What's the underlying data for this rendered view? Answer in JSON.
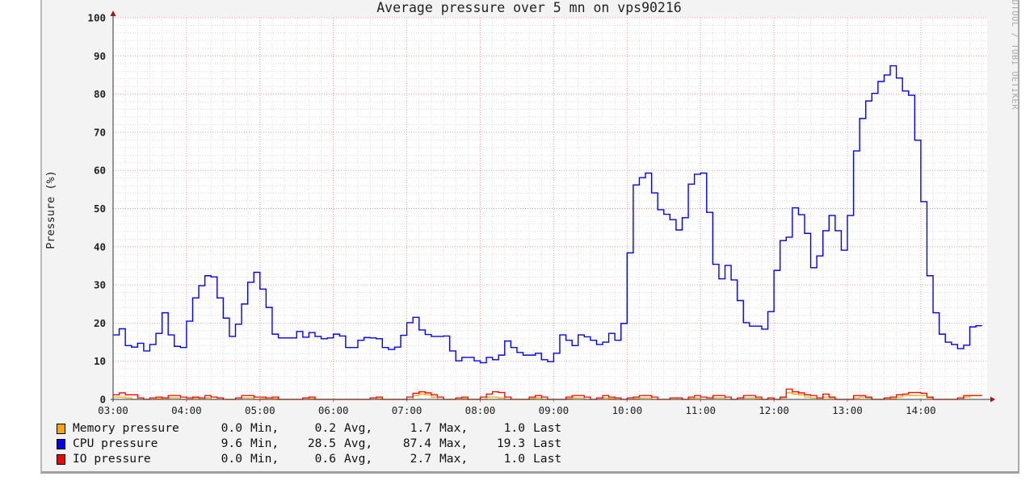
{
  "chart_data": {
    "type": "line",
    "title": "Average pressure over 5 mn on vps90216",
    "ylabel": "Pressure (%)",
    "xlabel": "",
    "watermark": "RRDTOOL / TOBI OETIKER",
    "ylim": [
      0,
      100
    ],
    "y_ticks": [
      0,
      10,
      20,
      30,
      40,
      50,
      60,
      70,
      80,
      90,
      100
    ],
    "x_tick_labels": [
      "03:00",
      "04:00",
      "05:00",
      "06:00",
      "07:00",
      "08:00",
      "09:00",
      "10:00",
      "11:00",
      "12:00",
      "13:00",
      "14:00"
    ],
    "x_start": "03:00",
    "interval_minutes": 5,
    "grid": true,
    "legend_placement": "bottom-left",
    "stat_labels": [
      "Min,",
      "Avg,",
      "Max,",
      "Last"
    ],
    "series": [
      {
        "name": "Memory pressure",
        "color": "#ffa500",
        "stats": {
          "min": "0.0",
          "avg": "0.2",
          "max": "1.7",
          "last": "1.0"
        },
        "values": [
          0.6,
          0.6,
          0.4,
          0,
          0,
          0,
          0,
          0.2,
          0,
          0.4,
          0.4,
          0,
          0,
          0.4,
          0,
          0.4,
          0,
          0,
          0,
          0,
          0,
          0.4,
          0.4,
          0,
          0.2,
          0,
          0.2,
          0,
          0,
          0,
          0,
          0,
          0.2,
          0,
          0,
          0,
          0,
          0,
          0,
          0,
          0,
          0,
          0,
          0.2,
          0,
          0,
          0,
          0,
          0,
          1.0,
          1.4,
          1.2,
          0.6,
          0,
          0,
          0,
          0,
          0.2,
          0,
          0,
          0,
          0.6,
          0.6,
          0.4,
          0,
          0,
          0,
          0,
          0.2,
          0.4,
          0,
          0,
          0,
          0,
          0.2,
          0.4,
          0.4,
          0,
          0,
          0,
          0.4,
          0.2,
          0,
          0,
          0,
          0.2,
          0.4,
          0.4,
          0,
          0,
          0,
          0,
          0,
          0,
          0.2,
          0.4,
          0,
          0,
          0.4,
          0.4,
          0,
          0,
          0,
          0.4,
          0.4,
          0.2,
          0,
          0,
          0,
          0.4,
          1.7,
          1.4,
          1.2,
          0.6,
          0.4,
          0,
          0.6,
          0.4,
          0,
          0,
          0,
          0.4,
          0.6,
          0.4,
          0,
          0,
          0,
          0.2,
          0.6,
          1.0,
          1.0,
          1.0,
          1.0,
          0.4,
          0,
          0,
          0,
          0,
          0,
          0.6,
          1.0,
          1.0
        ]
      },
      {
        "name": "CPU pressure",
        "color": "#0000ff",
        "stats": {
          "min": "9.6",
          "avg": "28.5",
          "max": "87.4",
          "last": "19.3"
        },
        "values": [
          16.9,
          18.5,
          14.1,
          13.7,
          14.7,
          12.7,
          14.4,
          17.3,
          22.7,
          16.9,
          13.9,
          13.6,
          20.5,
          26.6,
          29.8,
          32.4,
          32.1,
          26.6,
          21.3,
          16.5,
          19.7,
          25.0,
          30.7,
          33.3,
          28.9,
          24.1,
          17.1,
          16.1,
          16.1,
          16.1,
          17.8,
          16.3,
          17.5,
          16.5,
          15.9,
          16.1,
          17.1,
          16.6,
          13.6,
          13.6,
          15.5,
          16.2,
          16.1,
          15.9,
          13.6,
          13.1,
          13.7,
          16.8,
          20.1,
          21.5,
          18.2,
          17.0,
          16.5,
          16.5,
          16.6,
          12.7,
          10.1,
          11.0,
          11.0,
          10.1,
          9.6,
          11.0,
          10.4,
          11.6,
          15.3,
          13.6,
          12.3,
          11.6,
          11.6,
          12.1,
          10.4,
          9.9,
          12.1,
          16.9,
          15.5,
          14.1,
          16.9,
          16.4,
          15.5,
          14.4,
          15.0,
          17.3,
          15.5,
          19.9,
          38.4,
          56.2,
          58.1,
          59.3,
          54.1,
          49.7,
          48.5,
          47.1,
          44.4,
          47.6,
          56.4,
          59.0,
          59.3,
          49.0,
          35.4,
          31.6,
          35.1,
          31.3,
          25.9,
          20.1,
          19.2,
          19.2,
          18.4,
          23.0,
          33.8,
          41.6,
          42.5,
          50.2,
          48.4,
          43.5,
          34.5,
          37.6,
          44.2,
          48.2,
          44.2,
          39.1,
          48.2,
          65.1,
          73.6,
          78.2,
          80.2,
          83.3,
          85.0,
          87.4,
          84.2,
          80.8,
          79.7,
          67.9,
          51.8,
          32.4,
          22.7,
          17.1,
          15.0,
          14.4,
          13.3,
          14.2,
          19.0,
          19.3
        ]
      },
      {
        "name": "IO pressure",
        "color": "#ff0000",
        "stats": {
          "min": "0.0",
          "avg": "0.6",
          "max": "2.7",
          "last": "1.0"
        },
        "values": [
          1.2,
          1.7,
          1.2,
          1.2,
          0.4,
          0,
          0.4,
          0.6,
          0.4,
          1.0,
          1.0,
          0.6,
          0.4,
          0.6,
          0.4,
          1.0,
          0.6,
          0.4,
          0,
          0,
          0.4,
          1.0,
          1.0,
          0.6,
          0.6,
          0.4,
          0.6,
          0,
          0,
          0,
          0,
          0.4,
          0.6,
          0,
          0,
          0,
          0,
          0,
          0,
          0,
          0,
          0,
          0.4,
          0.6,
          0,
          0,
          0,
          0,
          0.6,
          1.6,
          2.0,
          1.7,
          1.2,
          0.6,
          0,
          0,
          0.4,
          0.6,
          0,
          0,
          0.6,
          1.4,
          2.0,
          1.8,
          0.6,
          0,
          0,
          0,
          0.6,
          1.0,
          0.6,
          0,
          0,
          0,
          0.6,
          1.0,
          1.0,
          0.6,
          0,
          0.4,
          1.0,
          0.6,
          0.4,
          0,
          0.4,
          0.6,
          1.0,
          1.0,
          0.6,
          0,
          0,
          0.4,
          0.4,
          0,
          0.6,
          1.0,
          0.6,
          0.4,
          1.0,
          1.0,
          0.6,
          0,
          0.4,
          1.0,
          1.0,
          0.6,
          0,
          0.4,
          0,
          0.6,
          2.7,
          2.0,
          1.7,
          1.2,
          1.0,
          0.4,
          1.4,
          0.6,
          0,
          0,
          0,
          1.0,
          1.0,
          0.6,
          0,
          0,
          0.4,
          0.6,
          1.2,
          1.4,
          1.8,
          1.8,
          1.6,
          0.6,
          0,
          0,
          0,
          0,
          0.4,
          1.0,
          1.0,
          1.0
        ]
      }
    ]
  }
}
